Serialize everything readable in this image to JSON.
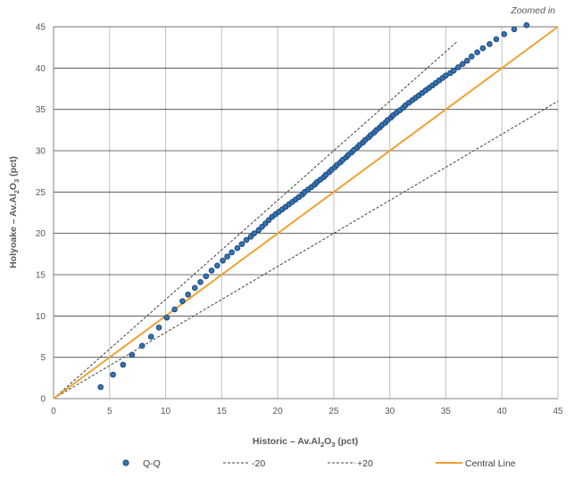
{
  "chart_data": {
    "type": "scatter",
    "annotation": "Zoomed in",
    "xlabel": {
      "main": "Historic – Av.Al",
      "sub1": "2",
      "mid": "O",
      "sub2": "3",
      "end": " (pct)"
    },
    "ylabel": {
      "main": "Holyoake – Av.Al",
      "sub1": "2",
      "mid": "O",
      "sub2": "3",
      "end": " (pct)"
    },
    "xlim": [
      0,
      45
    ],
    "ylim": [
      0,
      45
    ],
    "xticks": [
      0,
      5,
      10,
      15,
      20,
      25,
      30,
      35,
      40,
      45
    ],
    "yticks": [
      0,
      5,
      10,
      15,
      20,
      25,
      30,
      35,
      40,
      45
    ],
    "grid": "on",
    "legend_position": "bottom",
    "legend": [
      "Q-Q",
      "-20",
      "+20",
      "Central Line"
    ],
    "colors": {
      "points_fill": "#2e75b6",
      "points_edge": "#1f3864",
      "central_line": "#f0a030",
      "bounds": "#404040",
      "vgrid": "#c0c0c0",
      "hgrid": "#404040"
    },
    "series": [
      {
        "name": "Q-Q",
        "style": "markers",
        "x": [
          4.2,
          5.3,
          6.2,
          7.0,
          7.9,
          8.7,
          9.4,
          10.1,
          10.8,
          11.5,
          12.0,
          12.6,
          13.1,
          13.6,
          14.1,
          14.6,
          15.1,
          15.5,
          15.9,
          16.4,
          16.8,
          17.2,
          17.6,
          17.9,
          18.3,
          18.6,
          18.9,
          19.2,
          19.5,
          19.8,
          20.1,
          20.4,
          20.7,
          21.0,
          21.3,
          21.6,
          21.9,
          22.2,
          22.4,
          22.7,
          23.0,
          23.3,
          23.5,
          23.8,
          24.1,
          24.3,
          24.6,
          24.8,
          25.1,
          25.3,
          25.6,
          25.8,
          26.1,
          26.3,
          26.6,
          26.8,
          27.1,
          27.3,
          27.6,
          27.8,
          28.1,
          28.3,
          28.6,
          28.8,
          29.1,
          29.3,
          29.6,
          29.8,
          30.1,
          30.3,
          30.6,
          30.9,
          31.2,
          31.4,
          31.7,
          32.0,
          32.3,
          32.6,
          32.9,
          33.2,
          33.5,
          33.8,
          34.1,
          34.4,
          34.7,
          35.0,
          35.4,
          35.7,
          36.1,
          36.5,
          36.9,
          37.3,
          37.8,
          38.3,
          38.9,
          39.5,
          40.2,
          41.1,
          42.2
        ],
        "y": [
          1.4,
          2.9,
          4.1,
          5.3,
          6.4,
          7.5,
          8.6,
          9.8,
          10.8,
          11.8,
          12.6,
          13.4,
          14.1,
          14.8,
          15.5,
          16.1,
          16.7,
          17.2,
          17.7,
          18.2,
          18.7,
          19.2,
          19.6,
          20.0,
          20.4,
          20.8,
          21.2,
          21.6,
          22.0,
          22.3,
          22.6,
          22.9,
          23.2,
          23.5,
          23.8,
          24.1,
          24.4,
          24.7,
          25.0,
          25.3,
          25.6,
          25.9,
          26.2,
          26.5,
          26.8,
          27.1,
          27.4,
          27.7,
          28.0,
          28.3,
          28.6,
          28.9,
          29.2,
          29.5,
          29.8,
          30.1,
          30.4,
          30.7,
          31.0,
          31.3,
          31.6,
          31.9,
          32.2,
          32.5,
          32.8,
          33.1,
          33.4,
          33.7,
          34.0,
          34.3,
          34.6,
          34.9,
          35.2,
          35.5,
          35.8,
          36.1,
          36.4,
          36.7,
          37.0,
          37.3,
          37.6,
          37.9,
          38.2,
          38.5,
          38.8,
          39.1,
          39.4,
          39.7,
          40.1,
          40.5,
          40.9,
          41.4,
          41.9,
          42.4,
          42.9,
          43.5,
          44.1,
          44.7,
          45.2
        ]
      },
      {
        "name": "-20",
        "style": "dashed",
        "x": [
          0,
          45
        ],
        "y": [
          0,
          36
        ]
      },
      {
        "name": "+20",
        "style": "dashed",
        "x": [
          0,
          36
        ],
        "y": [
          0,
          43.2
        ]
      },
      {
        "name": "Central Line",
        "style": "solid",
        "x": [
          0,
          45
        ],
        "y": [
          0,
          45
        ]
      }
    ]
  }
}
